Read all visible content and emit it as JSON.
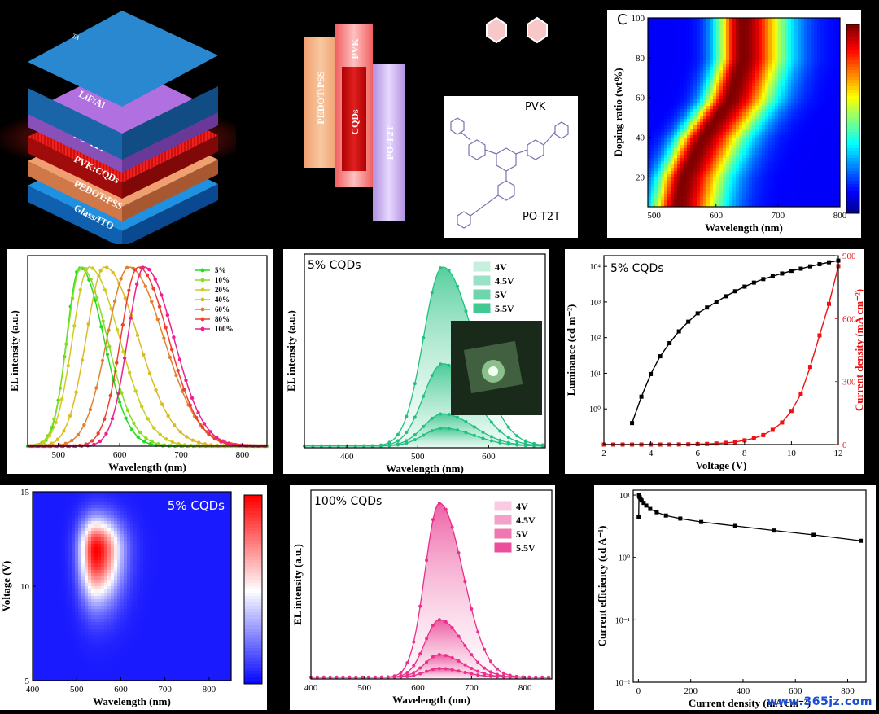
{
  "colors": {
    "series_green": [
      "#22dd22",
      "#88dd22",
      "#cccc22",
      "#ddbb22",
      "#e08030",
      "#ee4030",
      "#ee2090"
    ],
    "green_main": "#22c080",
    "pink_main": "#e8308a",
    "lum_black": "#000000",
    "jd_red": "#ee1111"
  },
  "device": {
    "layers": [
      "Glass/ITO",
      "PEDOT:PSS",
      "PVK:CQDs",
      "PO-T2T",
      "LiF/Al"
    ],
    "top_label": "TA",
    "energy_blocks": [
      "PEDOT:PSS",
      "PVK",
      "CQDs",
      "PO-T2T"
    ],
    "molecule_label_pvk": "PVK",
    "molecule_label_pot2t": "PO-T2T"
  },
  "chart_data": [
    {
      "id": "c",
      "type": "heatmap",
      "panel_letter": "C",
      "xlabel": "Wavelength (nm)",
      "ylabel": "Doping ratio (wt%)",
      "xlim": [
        490,
        800
      ],
      "ylim": [
        5,
        100
      ],
      "xticks": [
        "500",
        "600",
        "700",
        "800"
      ],
      "yticks": [
        "20",
        "40",
        "60",
        "80",
        "100"
      ],
      "peak_wavelength_at": [
        {
          "y": 5,
          "x": 535
        },
        {
          "y": 20,
          "x": 545
        },
        {
          "y": 40,
          "x": 575
        },
        {
          "y": 60,
          "x": 620
        },
        {
          "y": 80,
          "x": 640
        },
        {
          "y": 100,
          "x": 640
        }
      ]
    },
    {
      "id": "d",
      "type": "line",
      "xlabel": "Wavelength (nm)",
      "ylabel": "EL intensity (a.u.)",
      "xlim": [
        450,
        840
      ],
      "xticks": [
        "500",
        "600",
        "700",
        "800"
      ],
      "series": [
        {
          "name": "5%",
          "peak": 535,
          "w1": 30,
          "w2": 55
        },
        {
          "name": "10%",
          "peak": 537,
          "w1": 32,
          "w2": 60
        },
        {
          "name": "20%",
          "peak": 550,
          "w1": 38,
          "w2": 70
        },
        {
          "name": "40%",
          "peak": 575,
          "w1": 42,
          "w2": 78
        },
        {
          "name": "60%",
          "peak": 615,
          "w1": 50,
          "w2": 80
        },
        {
          "name": "80%",
          "peak": 630,
          "w1": 40,
          "w2": 70
        },
        {
          "name": "100%",
          "peak": 640,
          "w1": 38,
          "w2": 68
        }
      ]
    },
    {
      "id": "e",
      "type": "area",
      "annotation": "5% CQDs",
      "xlabel": "Wavelength (nm)",
      "ylabel": "EL intensity (a.u.)",
      "xlim": [
        340,
        680
      ],
      "xticks": [
        "400",
        "500",
        "600"
      ],
      "peak": 535,
      "series": [
        {
          "name": "4V",
          "amplitude": 0.1
        },
        {
          "name": "4.5V",
          "amplitude": 0.18
        },
        {
          "name": "5V",
          "amplitude": 0.46
        },
        {
          "name": "5.5V",
          "amplitude": 1.0
        }
      ]
    },
    {
      "id": "f",
      "type": "line",
      "annotation": "5% CQDs",
      "xlabel": "Voltage (V)",
      "ylabel": "Luminance (cd m⁻²)",
      "y2label": "Current density (mA cm⁻²)",
      "xlim": [
        2,
        12
      ],
      "xticks": [
        "2",
        "4",
        "6",
        "8",
        "10",
        "12"
      ],
      "ylim_log": [
        0.1,
        20000
      ],
      "yticks": [
        "10⁰",
        "10¹",
        "10²",
        "10³",
        "10⁴"
      ],
      "y2lim": [
        0,
        900
      ],
      "y2ticks": [
        "0",
        "300",
        "600",
        "900"
      ],
      "luminance": {
        "x": [
          3.2,
          3.6,
          4.0,
          4.4,
          4.8,
          5.2,
          5.6,
          6.0,
          6.4,
          6.8,
          7.2,
          7.6,
          8.0,
          8.4,
          8.8,
          9.2,
          9.6,
          10.0,
          10.4,
          10.8,
          11.2,
          11.6,
          12.0
        ],
        "y": [
          0.4,
          2.2,
          9.5,
          30,
          70,
          150,
          280,
          480,
          700,
          1000,
          1450,
          2000,
          2700,
          3500,
          4400,
          5300,
          6300,
          7500,
          8600,
          10000,
          11500,
          13000,
          14500
        ]
      },
      "current_density": {
        "x": [
          2.0,
          2.4,
          2.8,
          3.2,
          3.6,
          4.0,
          4.4,
          4.8,
          5.2,
          5.6,
          6.0,
          6.4,
          6.8,
          7.2,
          7.6,
          8.0,
          8.4,
          8.8,
          9.2,
          9.6,
          10.0,
          10.4,
          10.8,
          11.2,
          11.6,
          12.0
        ],
        "y": [
          0,
          0,
          0,
          0,
          0,
          0,
          0,
          0,
          0.5,
          1,
          2,
          3,
          5,
          8,
          12,
          20,
          30,
          45,
          70,
          105,
          160,
          240,
          370,
          520,
          670,
          850
        ]
      }
    },
    {
      "id": "g",
      "type": "heatmap",
      "annotation": "5% CQDs",
      "xlabel": "Wavelength (nm)",
      "ylabel": "Voltage (V)",
      "xlim": [
        400,
        850
      ],
      "ylim": [
        5,
        15
      ],
      "xticks": [
        "400",
        "500",
        "600",
        "700",
        "800"
      ],
      "yticks": [
        "5",
        "10",
        "15"
      ],
      "hotspot": {
        "x": 540,
        "y": 12
      }
    },
    {
      "id": "h",
      "type": "area",
      "annotation": "100% CQDs",
      "xlabel": "Wavelength (nm)",
      "ylabel": "EL intensity (a.u.)",
      "xlim": [
        400,
        850
      ],
      "xticks": [
        "400",
        "500",
        "600",
        "700",
        "800"
      ],
      "peak": 640,
      "series": [
        {
          "name": "4V",
          "amplitude": 0.05
        },
        {
          "name": "4.5V",
          "amplitude": 0.13
        },
        {
          "name": "5V",
          "amplitude": 0.33
        },
        {
          "name": "5.5V",
          "amplitude": 1.0
        }
      ]
    },
    {
      "id": "i",
      "type": "scatter",
      "xlabel": "Current density (mA cm⁻²)",
      "ylabel": "Current efficiency (cd A⁻¹)",
      "xlim": [
        -20,
        870
      ],
      "xticks": [
        "0",
        "200",
        "400",
        "600",
        "800"
      ],
      "ylim_log": [
        0.01,
        12
      ],
      "yticks": [
        "10⁻²",
        "10⁻¹",
        "10⁰",
        "10¹"
      ],
      "x": [
        1,
        2,
        3,
        5,
        8,
        12,
        20,
        30,
        45,
        70,
        105,
        160,
        240,
        370,
        520,
        670,
        850
      ],
      "y": [
        4.5,
        10,
        9.5,
        9.2,
        8.7,
        8.2,
        7.5,
        6.8,
        6.0,
        5.3,
        4.7,
        4.2,
        3.7,
        3.2,
        2.7,
        2.3,
        1.85
      ]
    }
  ],
  "watermark": "www.365jz.com"
}
